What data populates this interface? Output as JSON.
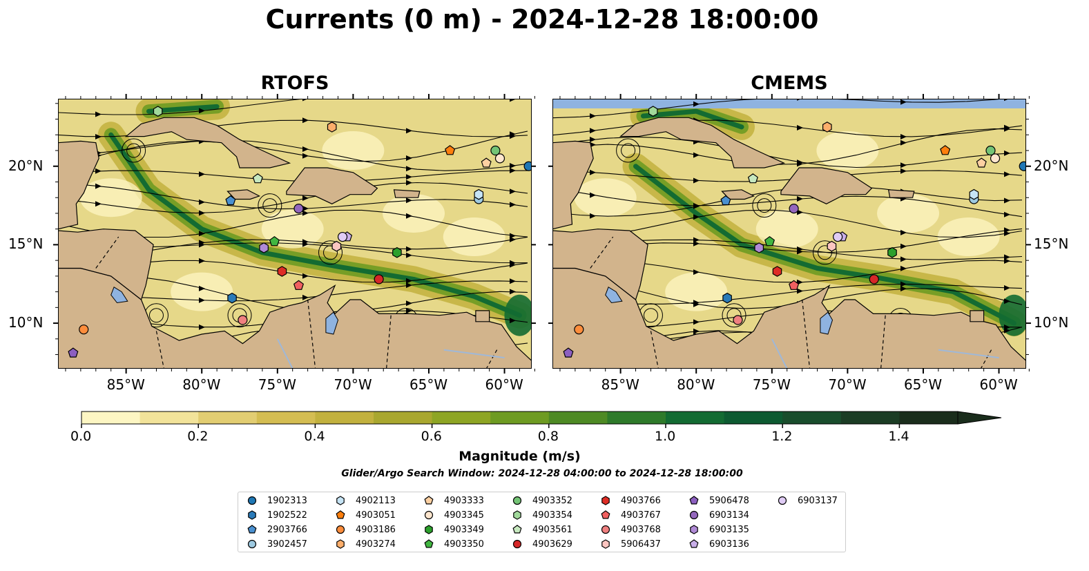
{
  "title": "Currents (0 m) - 2024-12-28 18:00:00",
  "panels": [
    {
      "title": "RTOFS"
    },
    {
      "title": "CMEMS"
    }
  ],
  "axes": {
    "x_ticks": [
      "85°W",
      "80°W",
      "75°W",
      "70°W",
      "65°W",
      "60°W"
    ],
    "y_ticks": [
      "20°N",
      "15°N",
      "10°N"
    ],
    "lon_range": [
      -89.5,
      -58.2
    ],
    "lat_range": [
      7.1,
      24.3
    ],
    "x_tick_values": [
      -85,
      -80,
      -75,
      -70,
      -65,
      -60
    ],
    "y_tick_values": [
      20,
      15,
      10
    ]
  },
  "colorbar": {
    "label": "Magnitude (m/s)",
    "ticks": [
      "0.0",
      "0.2",
      "0.4",
      "0.6",
      "0.8",
      "1.0",
      "1.2",
      "1.4"
    ],
    "range": [
      0,
      1.5
    ],
    "extend": "max",
    "colors": [
      "#fdf6c3",
      "#f2e39a",
      "#e2cd72",
      "#d4bd52",
      "#c2b13e",
      "#a9a72f",
      "#8ea524",
      "#6e9b22",
      "#4e8a24",
      "#2e7a2a",
      "#136b32",
      "#0d5a31",
      "#194d2c",
      "#1b3c24",
      "#1a2d1c"
    ]
  },
  "search_window": "Glider/Argo Search Window: 2024-12-28 04:00:00 to 2024-12-28 18:00:00",
  "legend": [
    {
      "id": "1902313",
      "marker": "circle",
      "color": "#1f77b4"
    },
    {
      "id": "1902522",
      "marker": "hexagon",
      "color": "#2a7ab8"
    },
    {
      "id": "2903766",
      "marker": "pentagon",
      "color": "#4a90d0"
    },
    {
      "id": "3902457",
      "marker": "circle",
      "color": "#9ecae1"
    },
    {
      "id": "4902113",
      "marker": "hexagon",
      "color": "#c6e4f5"
    },
    {
      "id": "4903051",
      "marker": "pentagon",
      "color": "#fd7f0e"
    },
    {
      "id": "4903186",
      "marker": "circle",
      "color": "#fd8d3c"
    },
    {
      "id": "4903274",
      "marker": "hexagon",
      "color": "#fdae6b"
    },
    {
      "id": "4903333",
      "marker": "pentagon",
      "color": "#fdd0a2"
    },
    {
      "id": "4903345",
      "marker": "circle",
      "color": "#fee6ce"
    },
    {
      "id": "4903349",
      "marker": "hexagon",
      "color": "#2ca02c"
    },
    {
      "id": "4903350",
      "marker": "pentagon",
      "color": "#41b641"
    },
    {
      "id": "4903352",
      "marker": "circle",
      "color": "#74c476"
    },
    {
      "id": "4903354",
      "marker": "hexagon",
      "color": "#a1d99b"
    },
    {
      "id": "4903561",
      "marker": "pentagon",
      "color": "#c7e9c0"
    },
    {
      "id": "4903629",
      "marker": "circle",
      "color": "#d62728"
    },
    {
      "id": "4903766",
      "marker": "hexagon",
      "color": "#de2d26"
    },
    {
      "id": "4903767",
      "marker": "pentagon",
      "color": "#f06060"
    },
    {
      "id": "4903768",
      "marker": "circle",
      "color": "#f08080"
    },
    {
      "id": "5906437",
      "marker": "hexagon",
      "color": "#fcc5c0"
    },
    {
      "id": "5906478",
      "marker": "pentagon",
      "color": "#8c5fc0"
    },
    {
      "id": "6903134",
      "marker": "circle",
      "color": "#9467bd"
    },
    {
      "id": "6903135",
      "marker": "hexagon",
      "color": "#b08ad6"
    },
    {
      "id": "6903136",
      "marker": "pentagon",
      "color": "#c8aee8"
    },
    {
      "id": "6903137",
      "marker": "circle",
      "color": "#e0ccf5"
    }
  ],
  "floats": [
    {
      "id": "1902313",
      "lon": -58.4,
      "lat": 20.0
    },
    {
      "id": "2903766",
      "lon": -78.1,
      "lat": 17.8
    },
    {
      "id": "3902457",
      "lon": -61.7,
      "lat": 17.9
    },
    {
      "id": "4902113",
      "lon": -61.7,
      "lat": 18.2
    },
    {
      "id": "4903051",
      "lon": -63.6,
      "lat": 21.0
    },
    {
      "id": "4903186",
      "lon": -87.8,
      "lat": 9.6
    },
    {
      "id": "4903274",
      "lon": -71.4,
      "lat": 22.5
    },
    {
      "id": "4903333",
      "lon": -61.2,
      "lat": 20.2
    },
    {
      "id": "4903345",
      "lon": -60.3,
      "lat": 20.5
    },
    {
      "id": "4903349",
      "lon": -67.1,
      "lat": 14.5
    },
    {
      "id": "4903350",
      "lon": -75.2,
      "lat": 15.2
    },
    {
      "id": "4903352",
      "lon": -60.6,
      "lat": 21.0
    },
    {
      "id": "4903354",
      "lon": -82.9,
      "lat": 23.5
    },
    {
      "id": "4903561",
      "lon": -76.3,
      "lat": 19.2
    },
    {
      "id": "4903629",
      "lon": -68.3,
      "lat": 12.8
    },
    {
      "id": "4903766",
      "lon": -74.7,
      "lat": 13.3
    },
    {
      "id": "4903767",
      "lon": -73.6,
      "lat": 12.4
    },
    {
      "id": "4903768",
      "lon": -77.3,
      "lat": 10.2
    },
    {
      "id": "5906437",
      "lon": -71.1,
      "lat": 14.9
    },
    {
      "id": "5906478",
      "lon": -88.5,
      "lat": 8.1
    },
    {
      "id": "6903134",
      "lon": -73.6,
      "lat": 17.3
    },
    {
      "id": "6903135",
      "lon": -75.9,
      "lat": 14.8
    },
    {
      "id": "6903136",
      "lon": -70.4,
      "lat": 15.5
    },
    {
      "id": "6903137",
      "lon": -70.7,
      "lat": 15.5
    },
    {
      "id": "1902522",
      "lon": -78.0,
      "lat": 11.6
    }
  ],
  "colors": {
    "land": "#d2b48c",
    "lake": "#8fb3e0",
    "river": "#9fb8d8",
    "top_strip": "#8fb3e0"
  }
}
